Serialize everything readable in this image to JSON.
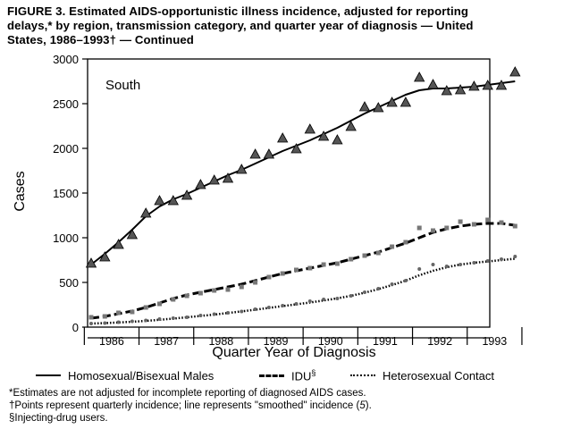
{
  "title": {
    "line1": "FIGURE 3. Estimated AIDS-opportunistic illness incidence, adjusted for reporting",
    "line2": "delays,* by region, transmission category, and quarter year of diagnosis — United",
    "line3": "States, 1986–1993† — Continued"
  },
  "colors": {
    "ink": "#000000",
    "background": "#ffffff"
  },
  "chart_data": {
    "type": "scatter",
    "title": "South",
    "xlabel": "Quarter Year of Diagnosis",
    "ylabel": "Cases",
    "ylim": [
      0,
      3000
    ],
    "yticks": [
      0,
      500,
      1000,
      1500,
      2000,
      2500,
      3000
    ],
    "categories": [
      "1986",
      "1987",
      "1988",
      "1989",
      "1990",
      "1991",
      "1992",
      "1993"
    ],
    "x_quarters": [
      1,
      32
    ],
    "series": [
      {
        "name": "Homosexual/Bisexual Males",
        "marker": "triangle",
        "line_style": "solid",
        "points": [
          710,
          780,
          920,
          1030,
          1270,
          1410,
          1410,
          1470,
          1590,
          1640,
          1660,
          1760,
          1930,
          1930,
          2110,
          1990,
          2210,
          2130,
          2090,
          2240,
          2460,
          2450,
          2510,
          2510,
          2790,
          2710,
          2640,
          2650,
          2690,
          2700,
          2700,
          2850
        ],
        "smoothed": [
          700,
          820,
          950,
          1090,
          1240,
          1350,
          1430,
          1490,
          1560,
          1630,
          1700,
          1760,
          1830,
          1900,
          1970,
          2030,
          2090,
          2160,
          2230,
          2310,
          2390,
          2460,
          2530,
          2600,
          2650,
          2670,
          2670,
          2680,
          2690,
          2710,
          2730,
          2750
        ]
      },
      {
        "name": "IDU§",
        "marker": "square",
        "line_style": "dashed",
        "points": [
          110,
          120,
          160,
          170,
          220,
          260,
          310,
          350,
          380,
          410,
          420,
          450,
          500,
          560,
          600,
          640,
          660,
          700,
          710,
          760,
          800,
          830,
          900,
          950,
          1110,
          1080,
          1110,
          1180,
          1150,
          1200,
          1170,
          1130
        ],
        "smoothed": [
          100,
          120,
          150,
          180,
          220,
          270,
          320,
          360,
          390,
          420,
          450,
          480,
          520,
          560,
          600,
          630,
          660,
          690,
          720,
          760,
          800,
          840,
          890,
          940,
          1000,
          1060,
          1100,
          1130,
          1150,
          1160,
          1160,
          1140
        ]
      },
      {
        "name": "Heterosexual Contact",
        "marker": "dot",
        "line_style": "dotted",
        "points": [
          40,
          45,
          55,
          65,
          75,
          90,
          100,
          110,
          130,
          145,
          160,
          175,
          200,
          220,
          240,
          260,
          290,
          310,
          320,
          350,
          390,
          430,
          480,
          520,
          650,
          700,
          680,
          700,
          720,
          740,
          760,
          790
        ],
        "smoothed": [
          40,
          45,
          52,
          60,
          70,
          82,
          95,
          110,
          125,
          140,
          158,
          176,
          195,
          215,
          235,
          255,
          275,
          298,
          322,
          350,
          385,
          425,
          470,
          520,
          580,
          630,
          670,
          700,
          720,
          735,
          750,
          765
        ]
      }
    ]
  },
  "legend": {
    "homosexual": "Homosexual/Bisexual Males",
    "idu": "IDU",
    "idu_sup": "§",
    "heterosexual": "Heterosexual Contact"
  },
  "footnotes": {
    "f1": "*Estimates are not adjusted for incomplete reporting of diagnosed AIDS cases.",
    "f2_a": "†Points represent quarterly incidence; line represents \"smoothed\" incidence (",
    "f2_ref": "5",
    "f2_b": ").",
    "f3": "§Injecting-drug users."
  }
}
